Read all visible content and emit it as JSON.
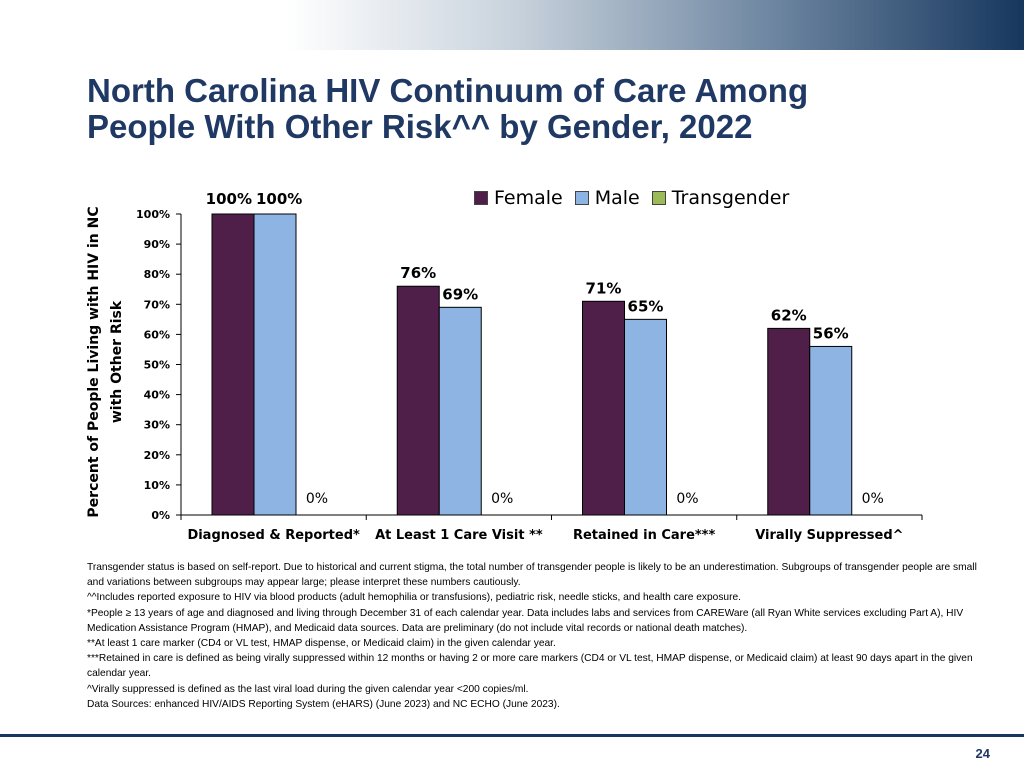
{
  "title": {
    "line1": "North Carolina HIV Continuum of Care Among",
    "line2": "People With Other Risk^^ by Gender, 2022"
  },
  "chart_data": {
    "type": "bar",
    "ylabel_line1": "Percent of People Living with HIV in NC",
    "ylabel_line2": "with Other Risk",
    "categories": [
      "Diagnosed & Reported*",
      "At Least 1 Care Visit **",
      "Retained in Care***",
      "Virally Suppressed^"
    ],
    "series": [
      {
        "name": "Female",
        "color": "#4f1f4a",
        "values": [
          100,
          76,
          71,
          62
        ]
      },
      {
        "name": "Male",
        "color": "#8db4e2",
        "values": [
          100,
          69,
          65,
          56
        ]
      },
      {
        "name": "Transgender",
        "color": "#9bbb59",
        "values": [
          0,
          0,
          0,
          0
        ]
      }
    ],
    "data_labels": [
      [
        "100%",
        "76%",
        "71%",
        "62%"
      ],
      [
        "100%",
        "69%",
        "65%",
        "56%"
      ],
      [
        "0%",
        "0%",
        "0%",
        "0%"
      ]
    ],
    "ylim": [
      0,
      100
    ],
    "yticks": [
      0,
      10,
      20,
      30,
      40,
      50,
      60,
      70,
      80,
      90,
      100
    ],
    "ytick_labels": [
      "0%",
      "10%",
      "20%",
      "30%",
      "40%",
      "50%",
      "60%",
      "70%",
      "80%",
      "90%",
      "100%"
    ],
    "grid": false,
    "legend_position": "top-right"
  },
  "notes": [
    "Transgender status is based on self-report. Due to historical and current stigma, the total number of transgender people is likely to be an underestimation. Subgroups of transgender people are small and variations between subgroups may appear large; please interpret these numbers cautiously.",
    "^^Includes reported exposure to HIV via blood products (adult hemophilia or transfusions), pediatric risk, needle sticks, and health care exposure.",
    "*People ≥ 13 years of age and diagnosed and living through December 31 of each calendar year. Data includes labs and services from CAREWare (all Ryan White services excluding Part A), HIV Medication Assistance Program (HMAP), and Medicaid data sources. Data are preliminary (do not include vital records or national death matches).",
    "**At least 1 care marker (CD4 or VL test, HMAP dispense, or Medicaid claim) in the given calendar year.",
    "***Retained in care is defined as being virally suppressed within 12 months or having 2 or more care markers (CD4 or VL test, HMAP dispense, or Medicaid claim) at least 90 days apart in the given calendar year.",
    "^Virally suppressed is defined as the last viral load during the given calendar year <200 copies/ml.",
    "Data Sources: enhanced HIV/AIDS Reporting System (eHARS) (June 2023) and NC ECHO (June 2023)."
  ],
  "footer": {
    "page_number": "24"
  }
}
